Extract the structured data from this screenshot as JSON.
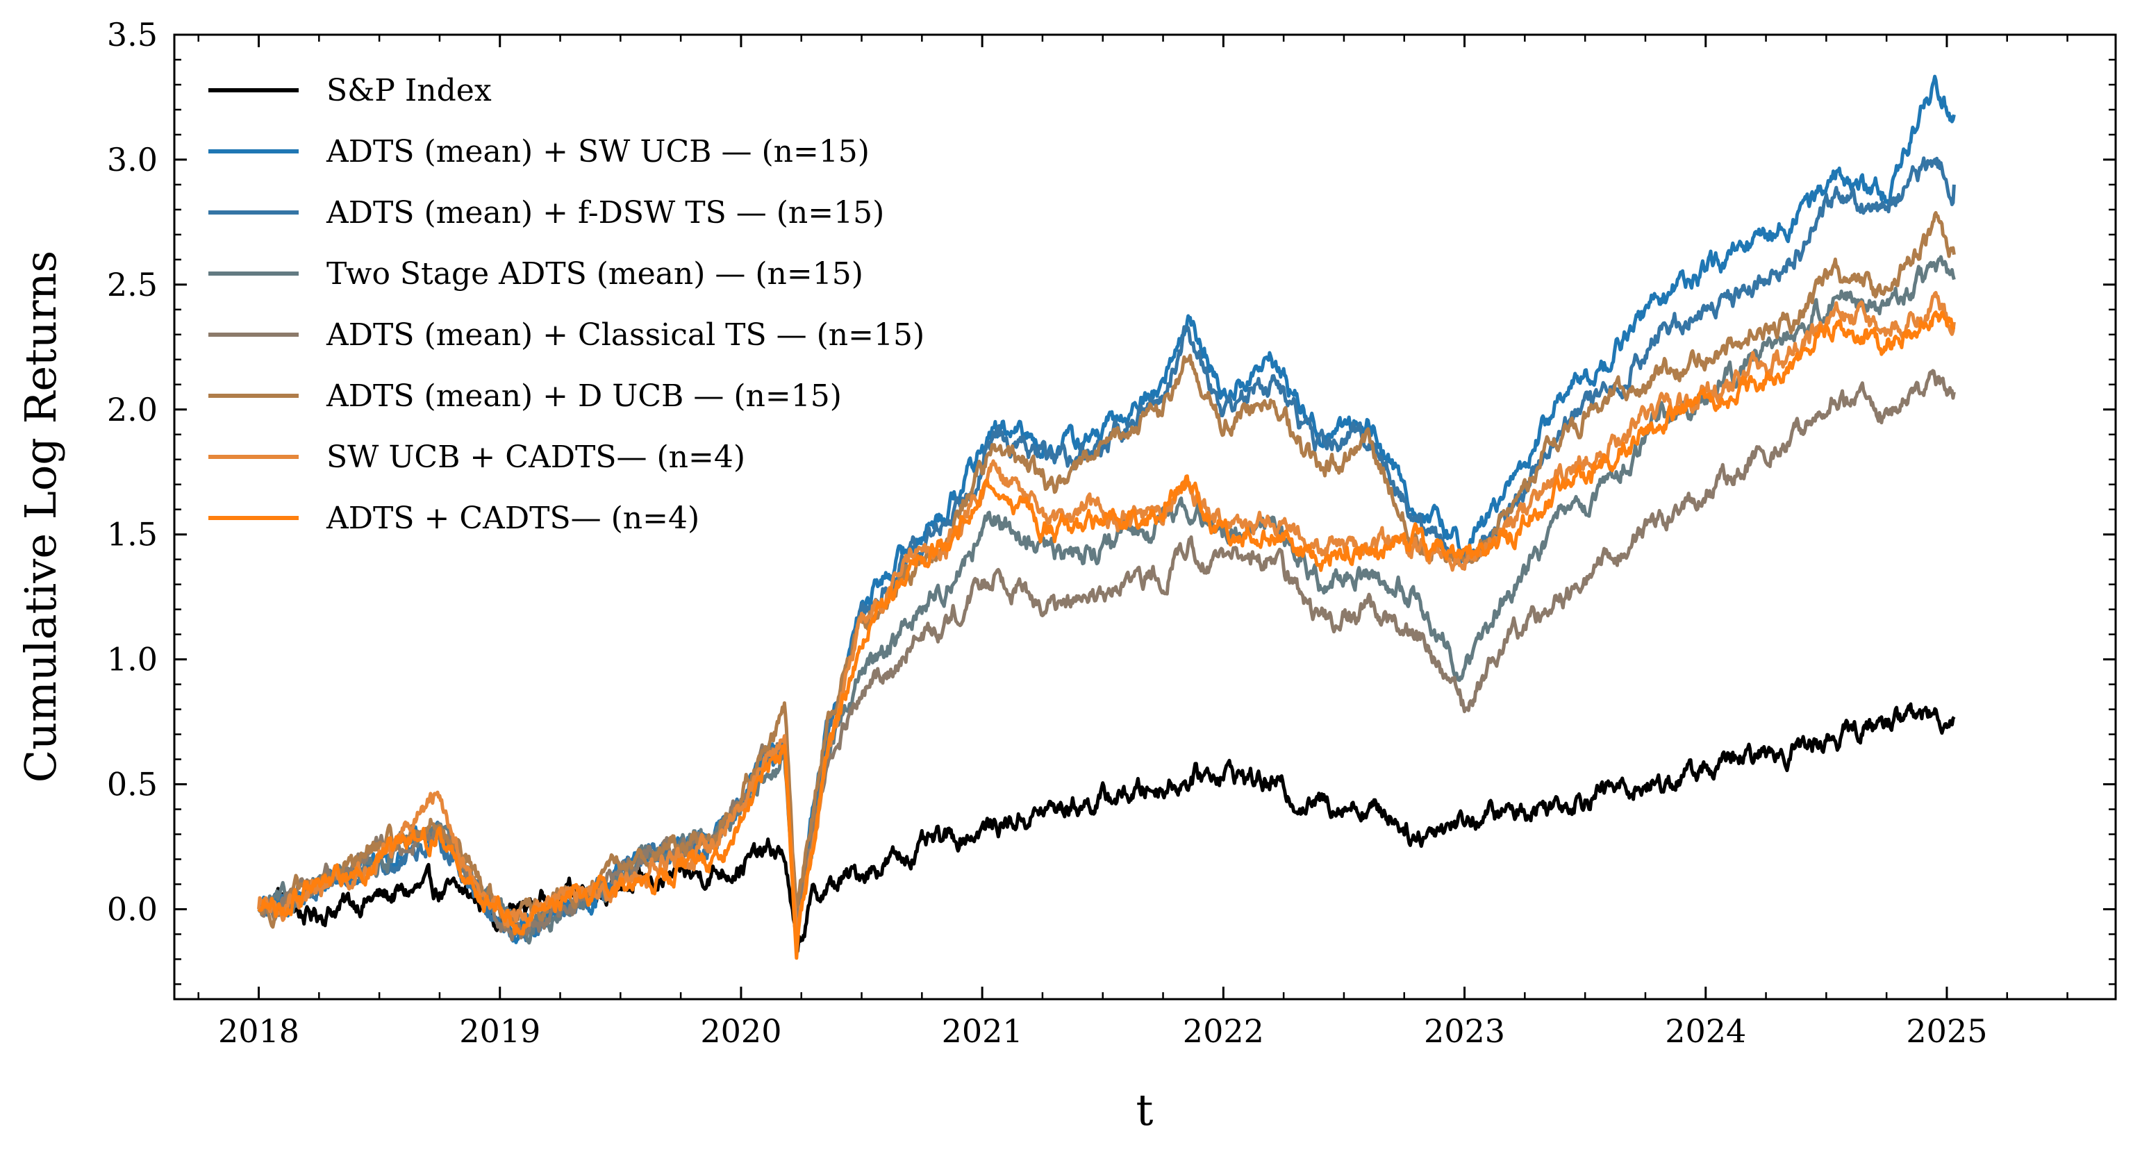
{
  "chart_data": {
    "type": "line",
    "title": "",
    "xlabel": "t",
    "ylabel": "Cumulative Log Returns",
    "xlim": [
      2017.65,
      2025.7
    ],
    "ylim": [
      -0.36,
      3.5
    ],
    "x_ticks": [
      2018,
      2019,
      2020,
      2021,
      2022,
      2023,
      2024,
      2025
    ],
    "x_tick_labels": [
      "2018",
      "2019",
      "2020",
      "2021",
      "2022",
      "2023",
      "2024",
      "2025"
    ],
    "y_ticks": [
      0.0,
      0.5,
      1.0,
      1.5,
      2.0,
      2.5,
      3.0,
      3.5
    ],
    "y_tick_labels": [
      "0.0",
      "0.5",
      "1.0",
      "1.5",
      "2.0",
      "2.5",
      "3.0",
      "3.5"
    ],
    "grid": false,
    "legend_position": "top-left",
    "series": [
      {
        "name": "S&P Index",
        "color": "#000000",
        "x": [
          2018.0,
          2018.08,
          2018.2,
          2018.4,
          2018.7,
          2018.9,
          2019.0,
          2019.3,
          2019.6,
          2019.9,
          2020.0,
          2020.12,
          2020.18,
          2020.23,
          2020.3,
          2020.5,
          2020.8,
          2021.0,
          2021.3,
          2021.6,
          2021.85,
          2022.0,
          2022.2,
          2022.35,
          2022.5,
          2022.7,
          2022.8,
          2022.9,
          2023.0,
          2023.3,
          2023.6,
          2023.8,
          2024.0,
          2024.3,
          2024.5,
          2024.65,
          2024.85,
          2025.03
        ],
        "y": [
          0.0,
          0.05,
          -0.03,
          0.03,
          0.08,
          0.05,
          -0.03,
          0.08,
          0.1,
          0.15,
          0.18,
          0.23,
          0.22,
          -0.18,
          0.05,
          0.15,
          0.26,
          0.32,
          0.4,
          0.46,
          0.52,
          0.56,
          0.5,
          0.42,
          0.43,
          0.38,
          0.29,
          0.34,
          0.36,
          0.41,
          0.48,
          0.5,
          0.56,
          0.63,
          0.68,
          0.72,
          0.78,
          0.77
        ]
      },
      {
        "name": "ADTS (mean) + SW UCB — (n=15)",
        "color": "#1f77b4",
        "x": [
          2018.0,
          2018.1,
          2018.5,
          2018.75,
          2018.9,
          2019.05,
          2019.3,
          2019.6,
          2019.9,
          2020.1,
          2020.18,
          2020.23,
          2020.35,
          2020.5,
          2020.7,
          2020.85,
          2021.05,
          2021.3,
          2021.5,
          2021.75,
          2021.85,
          2022.0,
          2022.2,
          2022.4,
          2022.6,
          2022.8,
          2023.0,
          2023.2,
          2023.4,
          2023.6,
          2023.8,
          2024.0,
          2024.2,
          2024.4,
          2024.55,
          2024.75,
          2024.95,
          2025.03
        ],
        "y": [
          0.0,
          0.02,
          0.2,
          0.3,
          0.1,
          -0.1,
          0.0,
          0.2,
          0.3,
          0.6,
          0.65,
          -0.05,
          0.7,
          1.2,
          1.45,
          1.6,
          1.92,
          1.85,
          1.9,
          2.1,
          2.38,
          2.05,
          2.2,
          1.9,
          1.95,
          1.6,
          1.45,
          1.7,
          2.05,
          2.2,
          2.45,
          2.55,
          2.65,
          2.8,
          2.95,
          2.85,
          3.32,
          3.18
        ]
      },
      {
        "name": "ADTS (mean) + f-DSW TS — (n=15)",
        "color": "#3575a5",
        "x": [
          2018.0,
          2018.1,
          2018.5,
          2018.75,
          2018.9,
          2019.05,
          2019.3,
          2019.6,
          2019.9,
          2020.1,
          2020.18,
          2020.23,
          2020.35,
          2020.5,
          2020.7,
          2020.85,
          2021.05,
          2021.3,
          2021.5,
          2021.75,
          2021.85,
          2022.0,
          2022.2,
          2022.4,
          2022.6,
          2022.8,
          2023.0,
          2023.2,
          2023.4,
          2023.6,
          2023.8,
          2024.0,
          2024.2,
          2024.4,
          2024.55,
          2024.75,
          2024.95,
          2025.03
        ],
        "y": [
          0.0,
          0.02,
          0.18,
          0.28,
          0.08,
          -0.12,
          -0.02,
          0.18,
          0.28,
          0.58,
          0.62,
          -0.08,
          0.68,
          1.15,
          1.4,
          1.55,
          1.88,
          1.8,
          1.85,
          2.05,
          2.33,
          2.0,
          2.12,
          1.85,
          1.9,
          1.55,
          1.4,
          1.6,
          1.95,
          2.05,
          2.3,
          2.4,
          2.5,
          2.65,
          2.88,
          2.8,
          3.0,
          2.9
        ]
      },
      {
        "name": "Two Stage ADTS (mean) — (n=15)",
        "color": "#637b82",
        "x": [
          2018.0,
          2018.1,
          2018.5,
          2018.75,
          2018.9,
          2019.05,
          2019.3,
          2019.6,
          2019.9,
          2020.1,
          2020.18,
          2020.23,
          2020.35,
          2020.5,
          2020.7,
          2020.85,
          2021.05,
          2021.3,
          2021.5,
          2021.75,
          2021.85,
          2022.0,
          2022.2,
          2022.4,
          2022.6,
          2022.8,
          2023.0,
          2023.2,
          2023.4,
          2023.6,
          2023.8,
          2024.0,
          2024.2,
          2024.4,
          2024.55,
          2024.75,
          2024.95,
          2025.03
        ],
        "y": [
          0.0,
          0.02,
          0.2,
          0.32,
          0.1,
          -0.08,
          0.0,
          0.2,
          0.28,
          0.55,
          0.6,
          -0.1,
          0.6,
          0.95,
          1.15,
          1.3,
          1.55,
          1.42,
          1.45,
          1.55,
          1.6,
          1.5,
          1.55,
          1.3,
          1.35,
          1.25,
          0.95,
          1.3,
          1.55,
          1.7,
          1.95,
          2.05,
          2.2,
          2.35,
          2.45,
          2.4,
          2.57,
          2.52
        ]
      },
      {
        "name": "ADTS (mean) + Classical TS — (n=15)",
        "color": "#8c7a6a",
        "x": [
          2018.0,
          2018.1,
          2018.5,
          2018.75,
          2018.9,
          2019.05,
          2019.3,
          2019.6,
          2019.9,
          2020.1,
          2020.18,
          2020.23,
          2020.35,
          2020.5,
          2020.7,
          2020.85,
          2021.05,
          2021.3,
          2021.5,
          2021.75,
          2021.85,
          2022.0,
          2022.2,
          2022.4,
          2022.6,
          2022.8,
          2023.0,
          2023.2,
          2023.4,
          2023.6,
          2023.8,
          2024.0,
          2024.2,
          2024.4,
          2024.55,
          2024.75,
          2024.95,
          2025.03
        ],
        "y": [
          0.0,
          0.02,
          0.22,
          0.3,
          0.12,
          -0.1,
          0.02,
          0.22,
          0.3,
          0.58,
          0.65,
          -0.05,
          0.55,
          0.85,
          1.05,
          1.15,
          1.35,
          1.2,
          1.25,
          1.35,
          1.45,
          1.38,
          1.42,
          1.15,
          1.2,
          1.1,
          0.82,
          1.1,
          1.25,
          1.4,
          1.55,
          1.65,
          1.8,
          1.9,
          2.05,
          2.0,
          2.12,
          2.07
        ]
      },
      {
        "name": "ADTS (mean) + D UCB — (n=15)",
        "color": "#b07d4a",
        "x": [
          2018.0,
          2018.1,
          2018.5,
          2018.75,
          2018.9,
          2019.05,
          2019.3,
          2019.6,
          2019.9,
          2020.1,
          2020.18,
          2020.23,
          2020.35,
          2020.5,
          2020.7,
          2020.85,
          2021.05,
          2021.3,
          2021.5,
          2021.75,
          2021.85,
          2022.0,
          2022.2,
          2022.4,
          2022.6,
          2022.8,
          2023.0,
          2023.2,
          2023.4,
          2023.6,
          2023.8,
          2024.0,
          2024.2,
          2024.4,
          2024.55,
          2024.75,
          2024.95,
          2025.03
        ],
        "y": [
          0.0,
          0.02,
          0.25,
          0.35,
          0.12,
          -0.05,
          0.05,
          0.22,
          0.3,
          0.65,
          0.8,
          -0.05,
          0.72,
          1.15,
          1.35,
          1.5,
          1.85,
          1.7,
          1.85,
          2.0,
          2.2,
          1.95,
          2.05,
          1.75,
          1.85,
          1.5,
          1.4,
          1.6,
          1.9,
          2.05,
          2.15,
          2.2,
          2.3,
          2.4,
          2.55,
          2.45,
          2.73,
          2.62
        ]
      },
      {
        "name": "SW UCB + CADTS— (n=4)",
        "color": "#e6873a",
        "x": [
          2018.0,
          2018.1,
          2018.5,
          2018.75,
          2018.9,
          2019.05,
          2019.3,
          2019.6,
          2019.9,
          2020.1,
          2020.18,
          2020.23,
          2020.35,
          2020.5,
          2020.7,
          2020.85,
          2021.05,
          2021.3,
          2021.5,
          2021.75,
          2021.85,
          2022.0,
          2022.2,
          2022.4,
          2022.6,
          2022.8,
          2023.0,
          2023.2,
          2023.4,
          2023.6,
          2023.8,
          2024.0,
          2024.2,
          2024.4,
          2024.55,
          2024.75,
          2024.95,
          2025.03
        ],
        "y": [
          0.0,
          0.02,
          0.2,
          0.45,
          0.08,
          -0.05,
          0.05,
          0.15,
          0.25,
          0.6,
          0.7,
          -0.1,
          0.6,
          1.15,
          1.4,
          1.45,
          1.75,
          1.55,
          1.6,
          1.55,
          1.7,
          1.5,
          1.55,
          1.45,
          1.45,
          1.45,
          1.4,
          1.55,
          1.75,
          1.85,
          2.0,
          2.05,
          2.15,
          2.25,
          2.4,
          2.3,
          2.42,
          2.35
        ]
      },
      {
        "name": "ADTS + CADTS— (n=4)",
        "color": "#ff7f0e",
        "x": [
          2018.0,
          2018.1,
          2018.5,
          2018.75,
          2018.9,
          2019.05,
          2019.3,
          2019.6,
          2019.9,
          2020.1,
          2020.18,
          2020.23,
          2020.35,
          2020.5,
          2020.7,
          2020.85,
          2021.05,
          2021.3,
          2021.5,
          2021.75,
          2021.85,
          2022.0,
          2022.2,
          2022.4,
          2022.6,
          2022.8,
          2023.0,
          2023.2,
          2023.4,
          2023.6,
          2023.8,
          2024.0,
          2024.2,
          2024.4,
          2024.55,
          2024.75,
          2024.95,
          2025.03
        ],
        "y": [
          0.0,
          0.02,
          0.2,
          0.3,
          0.08,
          -0.05,
          0.05,
          0.12,
          0.2,
          0.55,
          0.65,
          -0.12,
          0.55,
          1.1,
          1.35,
          1.45,
          1.73,
          1.5,
          1.55,
          1.6,
          1.72,
          1.5,
          1.5,
          1.4,
          1.45,
          1.45,
          1.4,
          1.5,
          1.7,
          1.8,
          1.95,
          2.0,
          2.1,
          2.2,
          2.35,
          2.25,
          2.38,
          2.33
        ]
      }
    ]
  }
}
